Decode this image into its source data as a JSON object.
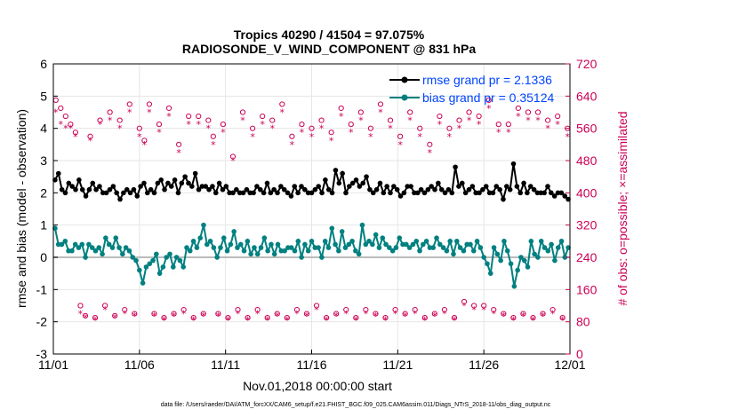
{
  "chart_data": {
    "type": "line",
    "title": "Tropics 40290 / 41504 = 97.075%",
    "subtitle": "RADIOSONDE_V_WIND_COMPONENT @ 831 hPa",
    "xlabel": "Nov.01,2018 00:00:00 start",
    "ylabel": "rmse and bias (model - observation)",
    "y2label": "# of obs: o=possible; ×=assimilated",
    "footer": "data file: /Users/raeder/DAI/ATM_forcXX/CAM6_setup/f.e21.FHIST_BGC.f09_025.CAM6assim.011/Diags_NTrS_2018-11/obs_diag_output.nc",
    "xlim": [
      0,
      30
    ],
    "ylim": [
      -3,
      6
    ],
    "y2lim": [
      0,
      720
    ],
    "x_ticks": [
      0,
      5,
      10,
      15,
      20,
      25,
      30
    ],
    "x_tick_labels": [
      "11/01",
      "11/06",
      "11/11",
      "11/16",
      "11/21",
      "11/26",
      "12/01"
    ],
    "y_ticks": [
      -3,
      -2,
      -1,
      0,
      1,
      2,
      3,
      4,
      5,
      6
    ],
    "y2_ticks": [
      0,
      80,
      160,
      240,
      320,
      400,
      480,
      560,
      640,
      720
    ],
    "colors": {
      "rmse": "#000000",
      "bias": "#008080",
      "obs": "#cc0055",
      "legend_text": "#0044ff",
      "zero_line": "#bbbbbb"
    },
    "series": [
      {
        "name": "rmse grand pr = 2.1336",
        "axis": "left",
        "values": [
          2.4,
          2.6,
          2.1,
          2.0,
          2.3,
          2.2,
          2.1,
          2.4,
          2.1,
          1.9,
          2.1,
          2.3,
          2.1,
          2.2,
          2.0,
          2.0,
          2.1,
          2.2,
          2.0,
          1.8,
          2.0,
          2.1,
          2.0,
          2.1,
          1.9,
          2.2,
          2.3,
          2.0,
          2.1,
          2.0,
          2.3,
          2.4,
          2.1,
          2.3,
          2.2,
          2.4,
          2.0,
          2.3,
          2.5,
          2.3,
          2.2,
          2.6,
          2.1,
          2.2,
          2.2,
          2.1,
          2.2,
          2.0,
          2.3,
          2.1,
          2.2,
          2.0,
          2.0,
          2.1,
          2.0,
          2.0,
          2.1,
          2.0,
          2.0,
          2.2,
          2.1,
          2.0,
          2.3,
          2.0,
          2.1,
          2.0,
          2.2,
          2.1,
          2.0,
          1.9,
          2.2,
          2.0,
          2.2,
          2.1,
          2.0,
          2.0,
          2.1,
          2.2,
          2.0,
          2.4,
          2.1,
          2.0,
          2.7,
          2.3,
          2.6,
          2.0,
          2.2,
          2.3,
          2.4,
          2.2,
          2.3,
          2.5,
          2.1,
          2.0,
          2.1,
          2.3,
          2.0,
          2.2,
          2.0,
          2.2,
          2.1,
          1.9,
          2.0,
          2.2,
          2.2,
          2.0,
          2.0,
          2.1,
          2.0,
          2.1,
          2.2,
          2.1,
          2.3,
          2.1,
          2.0,
          2.1,
          2.0,
          2.8,
          2.2,
          2.3,
          2.0,
          2.1,
          2.2,
          2.0,
          2.0,
          2.1,
          2.2,
          2.0,
          2.0,
          2.2,
          2.1,
          1.8,
          2.2,
          2.1,
          2.9,
          2.2,
          2.0,
          2.3,
          2.0,
          2.2,
          2.1,
          2.0,
          2.0,
          2.0,
          2.2,
          2.0,
          1.9,
          2.0,
          2.0,
          1.9,
          1.8
        ]
      },
      {
        "name": "bias grand pr = 0.35124",
        "axis": "left",
        "values": [
          0.9,
          0.4,
          0.4,
          0.5,
          0.2,
          0.2,
          0.4,
          0.3,
          0.4,
          0.0,
          0.4,
          0.3,
          0.2,
          0.3,
          0.1,
          0.6,
          0.4,
          0.3,
          0.6,
          0.3,
          0.1,
          0.3,
          0.2,
          0.0,
          -0.1,
          -0.4,
          -0.8,
          -0.3,
          -0.2,
          -0.1,
          0.1,
          -0.5,
          -0.3,
          0.0,
          0.1,
          -0.3,
          0.0,
          -0.1,
          -0.3,
          0.3,
          0.2,
          0.5,
          0.3,
          0.6,
          1.0,
          0.4,
          0.5,
          0.3,
          0.0,
          0.3,
          0.6,
          0.2,
          0.4,
          0.8,
          0.3,
          0.4,
          0.2,
          0.5,
          0.1,
          0.3,
          0.1,
          0.3,
          0.6,
          0.2,
          0.4,
          0.1,
          0.4,
          0.2,
          0.2,
          0.3,
          0.3,
          0.2,
          0.5,
          0.0,
          0.4,
          0.2,
          0.5,
          0.3,
          0.3,
          0.0,
          0.5,
          0.3,
          0.9,
          0.4,
          0.2,
          0.8,
          0.3,
          0.4,
          0.5,
          0.2,
          0.1,
          1.0,
          0.4,
          0.5,
          0.4,
          0.7,
          0.3,
          0.6,
          0.4,
          0.3,
          0.2,
          0.3,
          0.6,
          0.4,
          0.4,
          0.3,
          0.4,
          0.5,
          0.2,
          0.4,
          0.5,
          0.3,
          0.3,
          0.6,
          0.4,
          0.3,
          0.2,
          0.5,
          0.1,
          0.5,
          0.3,
          0.2,
          0.4,
          0.4,
          0.2,
          0.5,
          0.3,
          0.0,
          -0.2,
          -0.5,
          0.3,
          0.1,
          -0.1,
          0.5,
          0.2,
          -0.2,
          -0.9,
          -0.4,
          0.0,
          -0.1,
          -0.3,
          0.5,
          0.1,
          0.0,
          0.5,
          0.3,
          0.2,
          0.4,
          -0.1,
          0.3,
          0.5,
          0.0,
          0.3
        ]
      }
    ],
    "obs_possible": [
      630,
      610,
      590,
      570,
      550,
      120,
      95,
      540,
      90,
      580,
      120,
      600,
      95,
      580,
      110,
      620,
      100,
      560,
      530,
      620,
      100,
      570,
      90,
      610,
      100,
      520,
      110,
      590,
      90,
      590,
      100,
      580,
      540,
      100,
      570,
      90,
      490,
      110,
      600,
      90,
      560,
      110,
      590,
      90,
      580,
      100,
      620,
      90,
      540,
      110,
      570,
      100,
      560,
      120,
      580,
      90,
      550,
      100,
      610,
      110,
      570,
      90,
      600,
      110,
      560,
      100,
      620,
      90,
      580,
      110,
      540,
      100,
      600,
      110,
      560,
      90,
      520,
      100,
      590,
      110,
      560,
      90,
      580,
      130,
      600,
      120,
      590,
      120,
      630,
      110,
      570,
      100,
      570,
      90,
      610,
      100,
      600,
      90,
      600,
      100,
      580,
      110,
      590,
      90,
      560
    ],
    "obs_assim": [
      600,
      570,
      560,
      560,
      540,
      100,
      90,
      530,
      85,
      570,
      110,
      580,
      90,
      560,
      100,
      600,
      95,
      540,
      520,
      600,
      95,
      550,
      85,
      590,
      95,
      500,
      100,
      570,
      85,
      570,
      95,
      560,
      520,
      95,
      550,
      85,
      480,
      100,
      580,
      85,
      540,
      100,
      570,
      85,
      560,
      95,
      600,
      85,
      520,
      100,
      550,
      95,
      540,
      110,
      560,
      85,
      530,
      95,
      590,
      100,
      550,
      85,
      580,
      100,
      540,
      95,
      600,
      85,
      560,
      100,
      520,
      95,
      580,
      100,
      540,
      85,
      500,
      95,
      570,
      100,
      540,
      85,
      560,
      120,
      580,
      110,
      570,
      110,
      610,
      100,
      550,
      95,
      550,
      85,
      590,
      95,
      580,
      85,
      580,
      95,
      560,
      100,
      570,
      85,
      540
    ]
  }
}
